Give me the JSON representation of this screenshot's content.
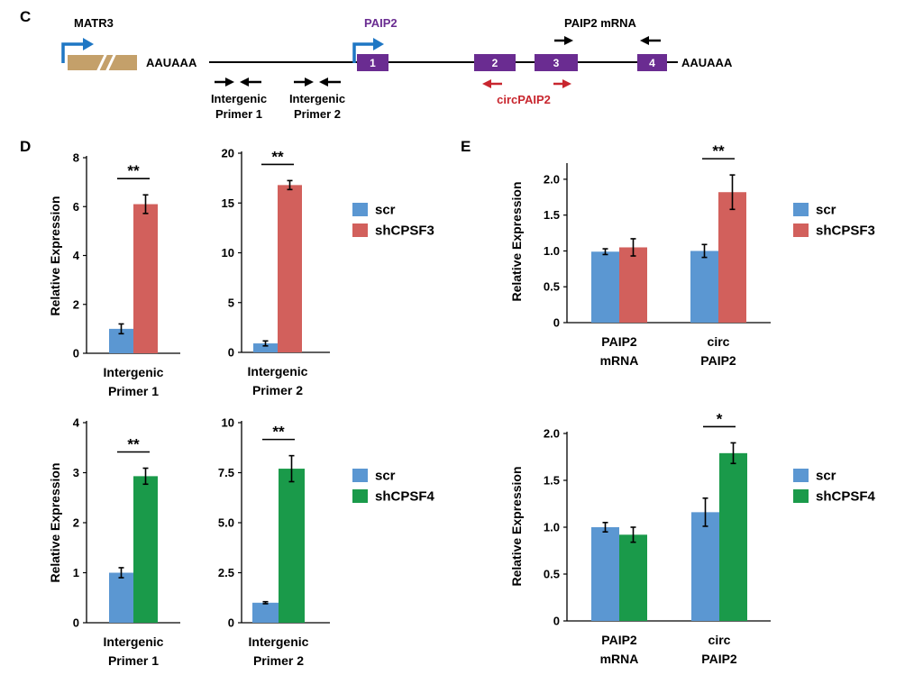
{
  "colors": {
    "scr": "#5b97d2",
    "shCPSF3": "#d2605c",
    "shCPSF4": "#1a9a4a",
    "purple": "#6a2c91",
    "promoter_blue": "#1f77c4",
    "matr3_box": "#c4a06a",
    "circ_red": "#c8262e",
    "black": "#000000"
  },
  "panel_c": {
    "letter": "C",
    "matr3_label": "MATR3",
    "polya_label_1": "AAUAAA",
    "paip2_label": "PAIP2",
    "paip2_mrna_label": "PAIP2 mRNA",
    "polya_label_2": "AAUAAA",
    "exons": [
      "1",
      "2",
      "3",
      "4"
    ],
    "intergenic_primer_1": [
      "Intergenic",
      "Primer 1"
    ],
    "intergenic_primer_2": [
      "Intergenic",
      "Primer 2"
    ],
    "circ_label": "circPAIP2",
    "icons": [
      "promoter-arrow-icon",
      "primer-arrow-icon",
      "break-mark-icon"
    ]
  },
  "panel_d": {
    "letter": "D"
  },
  "panel_e": {
    "letter": "E"
  },
  "legends": [
    {
      "items": [
        {
          "label": "scr",
          "color_key": "scr"
        },
        {
          "label": "shCPSF3",
          "color_key": "shCPSF3"
        }
      ]
    },
    {
      "items": [
        {
          "label": "scr",
          "color_key": "scr"
        },
        {
          "label": "shCPSF4",
          "color_key": "shCPSF4"
        }
      ]
    },
    {
      "items": [
        {
          "label": "scr",
          "color_key": "scr"
        },
        {
          "label": "shCPSF3",
          "color_key": "shCPSF3"
        }
      ]
    },
    {
      "items": [
        {
          "label": "scr",
          "color_key": "scr"
        },
        {
          "label": "shCPSF4",
          "color_key": "shCPSF4"
        }
      ]
    }
  ],
  "chart_data": [
    {
      "id": "D-top-left",
      "type": "bar",
      "ylabel": "Relative Expression",
      "ylim": [
        0,
        8
      ],
      "yticks": [
        "0",
        "2",
        "4",
        "6",
        "8"
      ],
      "categories": [
        [
          "Intergenic",
          "Primer 1"
        ]
      ],
      "series": [
        {
          "name": "scr",
          "values": [
            1.0
          ],
          "errors": [
            0.2
          ],
          "color_key": "scr"
        },
        {
          "name": "shCPSF3",
          "values": [
            6.1
          ],
          "errors": [
            0.38
          ],
          "color_key": "shCPSF3"
        }
      ],
      "significance": [
        {
          "category": 0,
          "label": "**"
        }
      ]
    },
    {
      "id": "D-top-right",
      "type": "bar",
      "ylabel": "",
      "ylim": [
        0,
        20
      ],
      "yticks": [
        "0",
        "5",
        "10",
        "15",
        "20"
      ],
      "categories": [
        [
          "Intergenic",
          "Primer 2"
        ]
      ],
      "series": [
        {
          "name": "scr",
          "values": [
            0.9
          ],
          "errors": [
            0.25
          ],
          "color_key": "scr"
        },
        {
          "name": "shCPSF3",
          "values": [
            16.8
          ],
          "errors": [
            0.45
          ],
          "color_key": "shCPSF3"
        }
      ],
      "significance": [
        {
          "category": 0,
          "label": "**"
        }
      ]
    },
    {
      "id": "D-bottom-left",
      "type": "bar",
      "ylabel": "Relative Expression",
      "ylim": [
        0,
        4
      ],
      "yticks": [
        "0",
        "1",
        "2",
        "3",
        "4"
      ],
      "categories": [
        [
          "Intergenic",
          "Primer 1"
        ]
      ],
      "series": [
        {
          "name": "scr",
          "values": [
            1.0
          ],
          "errors": [
            0.1
          ],
          "color_key": "scr"
        },
        {
          "name": "shCPSF4",
          "values": [
            2.93
          ],
          "errors": [
            0.16
          ],
          "color_key": "shCPSF4"
        }
      ],
      "significance": [
        {
          "category": 0,
          "label": "**"
        }
      ]
    },
    {
      "id": "D-bottom-right",
      "type": "bar",
      "ylabel": "",
      "ylim": [
        0,
        10
      ],
      "yticks": [
        "0",
        "2.5",
        "5.0",
        "7.5",
        "10"
      ],
      "categories": [
        [
          "Intergenic",
          "Primer 2"
        ]
      ],
      "series": [
        {
          "name": "scr",
          "values": [
            1.0
          ],
          "errors": [
            0.05
          ],
          "color_key": "scr"
        },
        {
          "name": "shCPSF4",
          "values": [
            7.7
          ],
          "errors": [
            0.65
          ],
          "color_key": "shCPSF4"
        }
      ],
      "significance": [
        {
          "category": 0,
          "label": "**"
        }
      ]
    },
    {
      "id": "E-top",
      "type": "bar",
      "ylabel": "Relative Expression",
      "ylim": [
        0,
        2.2
      ],
      "yticks": [
        "0",
        "0.5",
        "1.0",
        "1.5",
        "2.0"
      ],
      "ytick_values": [
        0,
        0.5,
        1.0,
        1.5,
        2.0
      ],
      "categories": [
        [
          "PAIP2",
          "mRNA"
        ],
        [
          "circ",
          "PAIP2"
        ]
      ],
      "series": [
        {
          "name": "scr",
          "values": [
            0.99,
            1.0
          ],
          "errors": [
            0.04,
            0.09
          ],
          "color_key": "scr"
        },
        {
          "name": "shCPSF3",
          "values": [
            1.05,
            1.82
          ],
          "errors": [
            0.12,
            0.24
          ],
          "color_key": "shCPSF3"
        }
      ],
      "significance": [
        {
          "category": 1,
          "label": "**"
        }
      ]
    },
    {
      "id": "E-bottom",
      "type": "bar",
      "ylabel": "Relative Expression",
      "ylim": [
        0,
        2.0
      ],
      "yticks": [
        "0",
        "0.5",
        "1.0",
        "1.5",
        "2.0"
      ],
      "categories": [
        [
          "PAIP2",
          "mRNA"
        ],
        [
          "circ",
          "PAIP2"
        ]
      ],
      "series": [
        {
          "name": "scr",
          "values": [
            1.0,
            1.16
          ],
          "errors": [
            0.05,
            0.15
          ],
          "color_key": "scr"
        },
        {
          "name": "shCPSF4",
          "values": [
            0.92,
            1.79
          ],
          "errors": [
            0.08,
            0.11
          ],
          "color_key": "shCPSF4"
        }
      ],
      "significance": [
        {
          "category": 1,
          "label": "*"
        }
      ]
    }
  ]
}
